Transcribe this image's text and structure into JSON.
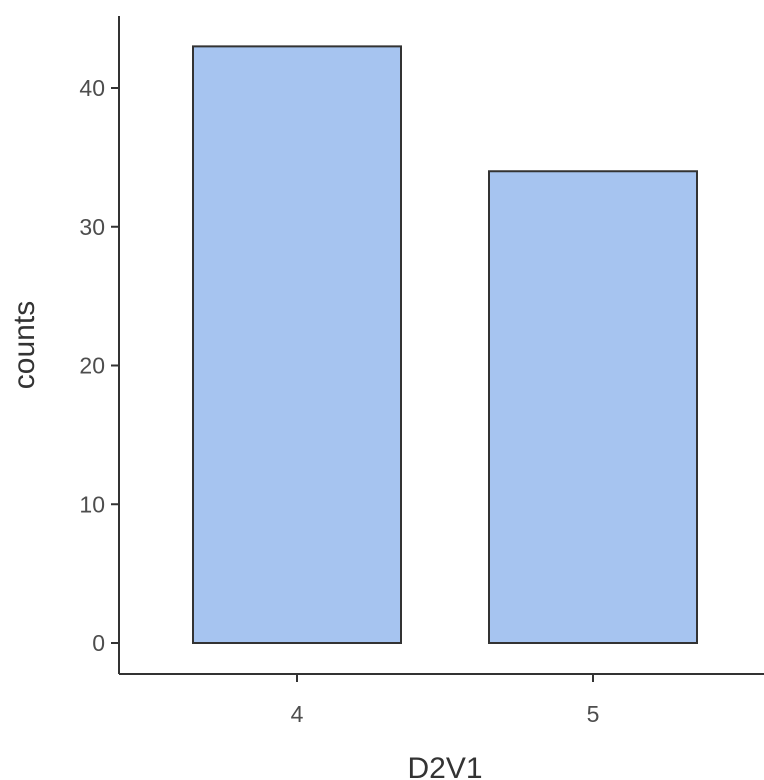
{
  "chart_data": {
    "type": "bar",
    "categories": [
      "4",
      "5"
    ],
    "values": [
      43,
      34
    ],
    "xlabel": "D2V1",
    "ylabel": "counts",
    "ylim": [
      0,
      45
    ],
    "yticks": [
      0,
      10,
      20,
      30,
      40
    ],
    "grid": false,
    "legend": "none",
    "colors": {
      "bar_fill": "#a6c4f0",
      "bar_stroke": "#333333",
      "axis": "#333333",
      "tick_text": "#4d4d4d"
    }
  }
}
